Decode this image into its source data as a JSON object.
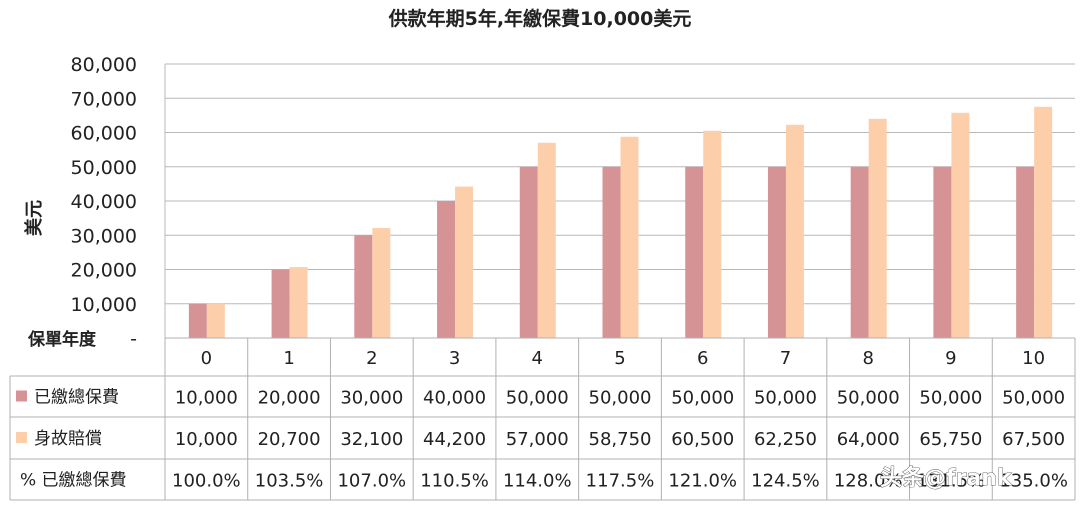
{
  "chart_data": {
    "type": "bar",
    "title": "供款年期5年,年繳保費10,000美元",
    "ylabel": "美元",
    "ylim": [
      0,
      80000
    ],
    "yticks": [
      "80,000",
      "70,000",
      "60,000",
      "50,000",
      "40,000",
      "30,000",
      "20,000",
      "10,000",
      "-"
    ],
    "xlabel": "保單年度",
    "categories": [
      "0",
      "1",
      "2",
      "3",
      "4",
      "5",
      "6",
      "7",
      "8",
      "9",
      "10"
    ],
    "series": [
      {
        "name": "已繳總保費",
        "color": "#d69396",
        "values": [
          10000,
          20000,
          30000,
          40000,
          50000,
          50000,
          50000,
          50000,
          50000,
          50000,
          50000
        ],
        "labels": [
          "10,000",
          "20,000",
          "30,000",
          "40,000",
          "50,000",
          "50,000",
          "50,000",
          "50,000",
          "50,000",
          "50,000",
          "50,000"
        ]
      },
      {
        "name": "身故賠償",
        "color": "#fccfaa",
        "values": [
          10000,
          20700,
          32100,
          44200,
          57000,
          58750,
          60500,
          62250,
          64000,
          65750,
          67500
        ],
        "labels": [
          "10,000",
          "20,700",
          "32,100",
          "44,200",
          "57,000",
          "58,750",
          "60,500",
          "62,250",
          "64,000",
          "65,750",
          "67,500"
        ]
      }
    ],
    "table_rows": [
      {
        "label": "% 已繳總保費",
        "values": [
          "100.0%",
          "103.5%",
          "107.0%",
          "110.5%",
          "114.0%",
          "117.5%",
          "121.0%",
          "124.5%",
          "128.0%",
          "131.5%",
          "135.0%"
        ]
      }
    ],
    "grid": true,
    "legend": "data-table"
  },
  "watermark": "头条@frank"
}
